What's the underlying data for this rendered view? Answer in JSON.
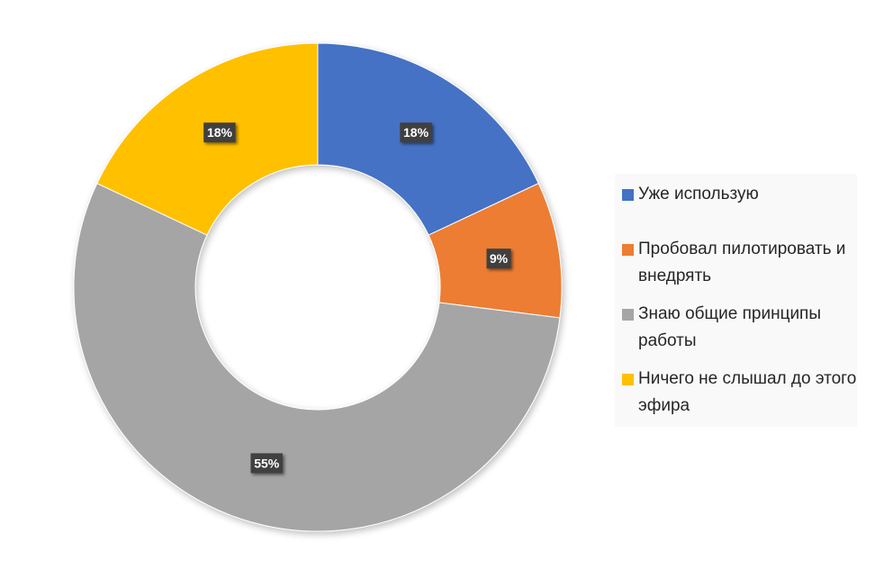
{
  "chart_data": {
    "type": "pie",
    "style": "donut",
    "title": "",
    "slices": [
      {
        "label": "Уже использую",
        "value": 18,
        "display": "18%",
        "color": "#4472c4"
      },
      {
        "label": "Пробовал пилотировать и внедрять",
        "value": 9,
        "display": "9%",
        "color": "#ed7d31"
      },
      {
        "label": "Знаю общие принципы работы",
        "value": 55,
        "display": "55%",
        "color": "#a5a5a5"
      },
      {
        "label": "Ничего не слышал до этого эфира",
        "value": 18,
        "display": "18%",
        "color": "#ffc000"
      }
    ],
    "legend_position": "right"
  }
}
